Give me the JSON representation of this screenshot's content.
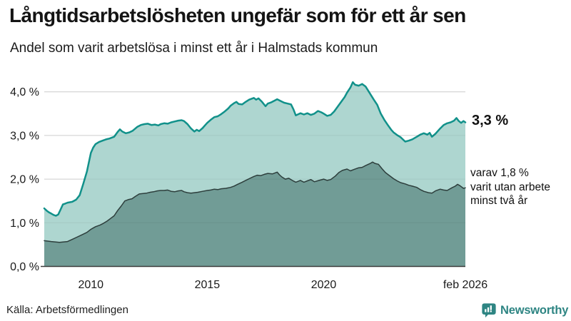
{
  "header": {
    "title": "Långtidsarbetslösheten ungefär som för ett år sen",
    "subtitle": "Andel som varit arbetslösa i minst ett år i Halmstads kommun"
  },
  "chart_data": {
    "type": "area",
    "title": "Långtidsarbetslösheten ungefär som för ett år sen",
    "subtitle": "Andel som varit arbetslösa i minst ett år i Halmstads kommun",
    "unit": "%",
    "grid": true,
    "x_axis": {
      "range": [
        2008.0,
        2026.083
      ],
      "ticks": [
        {
          "value": 2010,
          "label": "2010"
        },
        {
          "value": 2015,
          "label": "2015"
        },
        {
          "value": 2020,
          "label": "2020"
        },
        {
          "value": 2026.083,
          "label": "feb 2026"
        }
      ]
    },
    "y_axis": {
      "range": [
        0,
        4.4
      ],
      "ticks": [
        {
          "value": 0,
          "label": "0,0 %"
        },
        {
          "value": 1,
          "label": "1,0 %"
        },
        {
          "value": 2,
          "label": "2,0 %"
        },
        {
          "value": 3,
          "label": "3,0 %"
        },
        {
          "value": 4,
          "label": "4,0 %"
        }
      ]
    },
    "series": [
      {
        "name": "Arbetslösa minst ett år",
        "line_color": "#11918a",
        "line_width": 2.5,
        "fill": "#aed6d0",
        "latest_label": "3,3 %",
        "points": [
          [
            2008.0,
            1.33
          ],
          [
            2008.1,
            1.28
          ],
          [
            2008.2,
            1.24
          ],
          [
            2008.3,
            1.21
          ],
          [
            2008.4,
            1.18
          ],
          [
            2008.5,
            1.16
          ],
          [
            2008.6,
            1.19
          ],
          [
            2008.7,
            1.3
          ],
          [
            2008.8,
            1.42
          ],
          [
            2008.9,
            1.44
          ],
          [
            2009.0,
            1.46
          ],
          [
            2009.1,
            1.47
          ],
          [
            2009.2,
            1.48
          ],
          [
            2009.37,
            1.53
          ],
          [
            2009.52,
            1.63
          ],
          [
            2009.68,
            1.9
          ],
          [
            2009.83,
            2.17
          ],
          [
            2010.0,
            2.6
          ],
          [
            2010.1,
            2.72
          ],
          [
            2010.2,
            2.8
          ],
          [
            2010.35,
            2.85
          ],
          [
            2010.5,
            2.88
          ],
          [
            2010.65,
            2.91
          ],
          [
            2010.8,
            2.93
          ],
          [
            2011.0,
            2.97
          ],
          [
            2011.15,
            3.08
          ],
          [
            2011.25,
            3.14
          ],
          [
            2011.35,
            3.09
          ],
          [
            2011.5,
            3.05
          ],
          [
            2011.65,
            3.07
          ],
          [
            2011.8,
            3.11
          ],
          [
            2012.0,
            3.2
          ],
          [
            2012.15,
            3.24
          ],
          [
            2012.3,
            3.26
          ],
          [
            2012.45,
            3.27
          ],
          [
            2012.6,
            3.24
          ],
          [
            2012.75,
            3.25
          ],
          [
            2012.9,
            3.23
          ],
          [
            2013.0,
            3.26
          ],
          [
            2013.15,
            3.28
          ],
          [
            2013.3,
            3.27
          ],
          [
            2013.45,
            3.3
          ],
          [
            2013.6,
            3.32
          ],
          [
            2013.75,
            3.34
          ],
          [
            2013.9,
            3.35
          ],
          [
            2014.0,
            3.33
          ],
          [
            2014.15,
            3.26
          ],
          [
            2014.3,
            3.16
          ],
          [
            2014.45,
            3.09
          ],
          [
            2014.55,
            3.13
          ],
          [
            2014.65,
            3.1
          ],
          [
            2014.8,
            3.17
          ],
          [
            2014.9,
            3.23
          ],
          [
            2015.0,
            3.29
          ],
          [
            2015.15,
            3.36
          ],
          [
            2015.3,
            3.42
          ],
          [
            2015.45,
            3.44
          ],
          [
            2015.6,
            3.49
          ],
          [
            2015.75,
            3.55
          ],
          [
            2015.9,
            3.62
          ],
          [
            2016.0,
            3.68
          ],
          [
            2016.15,
            3.74
          ],
          [
            2016.25,
            3.77
          ],
          [
            2016.35,
            3.72
          ],
          [
            2016.5,
            3.71
          ],
          [
            2016.65,
            3.77
          ],
          [
            2016.8,
            3.82
          ],
          [
            2017.0,
            3.86
          ],
          [
            2017.1,
            3.82
          ],
          [
            2017.2,
            3.85
          ],
          [
            2017.35,
            3.77
          ],
          [
            2017.5,
            3.67
          ],
          [
            2017.6,
            3.73
          ],
          [
            2017.75,
            3.76
          ],
          [
            2017.9,
            3.8
          ],
          [
            2018.0,
            3.83
          ],
          [
            2018.15,
            3.79
          ],
          [
            2018.3,
            3.75
          ],
          [
            2018.45,
            3.73
          ],
          [
            2018.6,
            3.71
          ],
          [
            2018.7,
            3.6
          ],
          [
            2018.8,
            3.46
          ],
          [
            2019.0,
            3.51
          ],
          [
            2019.15,
            3.48
          ],
          [
            2019.3,
            3.51
          ],
          [
            2019.45,
            3.47
          ],
          [
            2019.6,
            3.5
          ],
          [
            2019.75,
            3.56
          ],
          [
            2019.9,
            3.53
          ],
          [
            2020.0,
            3.5
          ],
          [
            2020.15,
            3.45
          ],
          [
            2020.3,
            3.47
          ],
          [
            2020.45,
            3.55
          ],
          [
            2020.6,
            3.66
          ],
          [
            2020.75,
            3.77
          ],
          [
            2020.9,
            3.88
          ],
          [
            2021.0,
            3.98
          ],
          [
            2021.15,
            4.1
          ],
          [
            2021.25,
            4.22
          ],
          [
            2021.35,
            4.16
          ],
          [
            2021.5,
            4.14
          ],
          [
            2021.65,
            4.18
          ],
          [
            2021.8,
            4.12
          ],
          [
            2022.0,
            3.95
          ],
          [
            2022.15,
            3.82
          ],
          [
            2022.3,
            3.7
          ],
          [
            2022.45,
            3.5
          ],
          [
            2022.6,
            3.36
          ],
          [
            2022.75,
            3.24
          ],
          [
            2022.9,
            3.13
          ],
          [
            2023.0,
            3.07
          ],
          [
            2023.15,
            3.01
          ],
          [
            2023.3,
            2.96
          ],
          [
            2023.5,
            2.86
          ],
          [
            2023.65,
            2.88
          ],
          [
            2023.8,
            2.91
          ],
          [
            2024.0,
            2.97
          ],
          [
            2024.15,
            3.02
          ],
          [
            2024.3,
            3.05
          ],
          [
            2024.45,
            3.02
          ],
          [
            2024.55,
            3.06
          ],
          [
            2024.65,
            2.97
          ],
          [
            2024.8,
            3.04
          ],
          [
            2025.0,
            3.16
          ],
          [
            2025.15,
            3.24
          ],
          [
            2025.3,
            3.28
          ],
          [
            2025.45,
            3.3
          ],
          [
            2025.6,
            3.34
          ],
          [
            2025.7,
            3.4
          ],
          [
            2025.8,
            3.33
          ],
          [
            2025.9,
            3.29
          ],
          [
            2026.0,
            3.33
          ],
          [
            2026.083,
            3.3
          ]
        ]
      },
      {
        "name": "Arbetslösa minst två år",
        "line_color": "#2d3e3c",
        "line_width": 1.5,
        "fill": "#719c96",
        "latest_label": "1,8 %",
        "points": [
          [
            2008.0,
            0.59
          ],
          [
            2008.15,
            0.58
          ],
          [
            2008.3,
            0.57
          ],
          [
            2008.5,
            0.56
          ],
          [
            2008.65,
            0.55
          ],
          [
            2008.8,
            0.56
          ],
          [
            2009.0,
            0.57
          ],
          [
            2009.2,
            0.62
          ],
          [
            2009.4,
            0.67
          ],
          [
            2009.6,
            0.72
          ],
          [
            2009.83,
            0.78
          ],
          [
            2010.0,
            0.85
          ],
          [
            2010.2,
            0.91
          ],
          [
            2010.4,
            0.95
          ],
          [
            2010.55,
            0.99
          ],
          [
            2010.7,
            1.04
          ],
          [
            2010.85,
            1.1
          ],
          [
            2011.0,
            1.16
          ],
          [
            2011.15,
            1.28
          ],
          [
            2011.3,
            1.38
          ],
          [
            2011.46,
            1.5
          ],
          [
            2011.6,
            1.53
          ],
          [
            2011.77,
            1.55
          ],
          [
            2011.9,
            1.6
          ],
          [
            2012.08,
            1.66
          ],
          [
            2012.25,
            1.67
          ],
          [
            2012.4,
            1.68
          ],
          [
            2012.55,
            1.7
          ],
          [
            2012.7,
            1.71
          ],
          [
            2012.85,
            1.73
          ],
          [
            2013.0,
            1.74
          ],
          [
            2013.15,
            1.74
          ],
          [
            2013.3,
            1.75
          ],
          [
            2013.45,
            1.72
          ],
          [
            2013.6,
            1.71
          ],
          [
            2013.75,
            1.73
          ],
          [
            2013.9,
            1.74
          ],
          [
            2014.0,
            1.71
          ],
          [
            2014.15,
            1.69
          ],
          [
            2014.3,
            1.68
          ],
          [
            2014.45,
            1.69
          ],
          [
            2014.6,
            1.7
          ],
          [
            2014.8,
            1.72
          ],
          [
            2015.0,
            1.74
          ],
          [
            2015.15,
            1.75
          ],
          [
            2015.3,
            1.77
          ],
          [
            2015.45,
            1.76
          ],
          [
            2015.6,
            1.78
          ],
          [
            2015.8,
            1.79
          ],
          [
            2016.0,
            1.81
          ],
          [
            2016.15,
            1.84
          ],
          [
            2016.3,
            1.88
          ],
          [
            2016.5,
            1.93
          ],
          [
            2016.65,
            1.97
          ],
          [
            2016.8,
            2.01
          ],
          [
            2017.0,
            2.06
          ],
          [
            2017.15,
            2.09
          ],
          [
            2017.3,
            2.08
          ],
          [
            2017.45,
            2.11
          ],
          [
            2017.6,
            2.13
          ],
          [
            2017.8,
            2.12
          ],
          [
            2018.0,
            2.16
          ],
          [
            2018.1,
            2.1
          ],
          [
            2018.2,
            2.05
          ],
          [
            2018.35,
            2.0
          ],
          [
            2018.5,
            2.02
          ],
          [
            2018.65,
            1.97
          ],
          [
            2018.8,
            1.93
          ],
          [
            2019.0,
            1.97
          ],
          [
            2019.15,
            1.93
          ],
          [
            2019.3,
            1.96
          ],
          [
            2019.45,
            1.99
          ],
          [
            2019.6,
            1.94
          ],
          [
            2019.8,
            1.97
          ],
          [
            2020.0,
            2.0
          ],
          [
            2020.15,
            1.97
          ],
          [
            2020.3,
            1.99
          ],
          [
            2020.5,
            2.07
          ],
          [
            2020.65,
            2.15
          ],
          [
            2020.8,
            2.2
          ],
          [
            2021.0,
            2.23
          ],
          [
            2021.15,
            2.19
          ],
          [
            2021.3,
            2.22
          ],
          [
            2021.5,
            2.26
          ],
          [
            2021.65,
            2.27
          ],
          [
            2021.8,
            2.31
          ],
          [
            2022.0,
            2.36
          ],
          [
            2022.1,
            2.39
          ],
          [
            2022.2,
            2.36
          ],
          [
            2022.35,
            2.34
          ],
          [
            2022.5,
            2.24
          ],
          [
            2022.65,
            2.15
          ],
          [
            2022.8,
            2.09
          ],
          [
            2023.0,
            2.01
          ],
          [
            2023.15,
            1.96
          ],
          [
            2023.3,
            1.92
          ],
          [
            2023.5,
            1.89
          ],
          [
            2023.65,
            1.86
          ],
          [
            2023.8,
            1.84
          ],
          [
            2024.0,
            1.81
          ],
          [
            2024.15,
            1.76
          ],
          [
            2024.3,
            1.72
          ],
          [
            2024.5,
            1.69
          ],
          [
            2024.65,
            1.68
          ],
          [
            2024.8,
            1.73
          ],
          [
            2025.0,
            1.77
          ],
          [
            2025.15,
            1.75
          ],
          [
            2025.3,
            1.74
          ],
          [
            2025.5,
            1.8
          ],
          [
            2025.65,
            1.84
          ],
          [
            2025.75,
            1.88
          ],
          [
            2025.85,
            1.85
          ],
          [
            2026.0,
            1.79
          ],
          [
            2026.083,
            1.8
          ]
        ]
      }
    ],
    "end_labels": {
      "total": "3,3 %",
      "subset": [
        "varav 1,8 %",
        "varit utan arbete",
        "minst två år"
      ]
    },
    "colors": {
      "accent_line": "#11918a",
      "light_fill": "#aed6d0",
      "dark_fill": "#719c96",
      "dark_line": "#2d3e3c",
      "gridline": "#d9d9d9",
      "axis": "#3a3a3a"
    },
    "legend": "none"
  },
  "footer": {
    "source": "Källa: Arbetsförmedlingen",
    "brand": "Newsworthy",
    "brand_color": "#2e8583"
  }
}
